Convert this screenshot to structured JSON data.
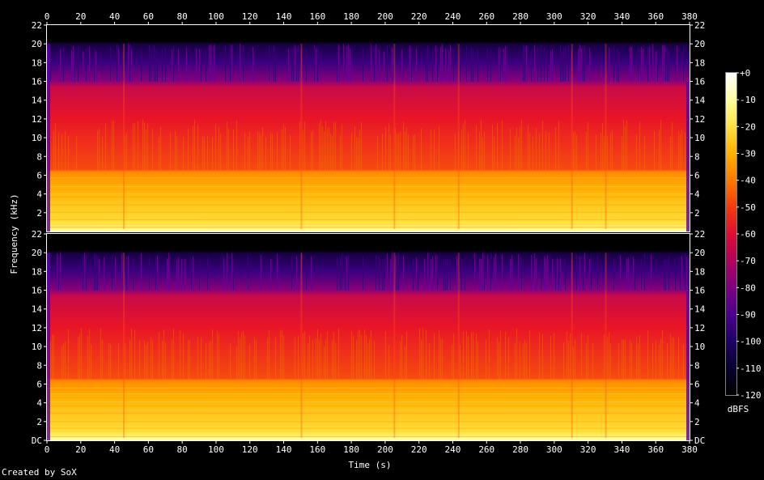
{
  "chart_data": {
    "type": "heatmap",
    "title": "",
    "xlabel": "Time (s)",
    "ylabel": "Frequency (kHz)",
    "xlim": [
      0,
      380
    ],
    "channels": [
      {
        "name": "",
        "ylim": [
          0,
          22
        ],
        "yticks": [
          "DC",
          "2",
          "4",
          "6",
          "8",
          "10",
          "12",
          "14",
          "16",
          "18",
          "20",
          "22"
        ]
      },
      {
        "name": "",
        "ylim": [
          0,
          22
        ],
        "yticks": [
          "DC",
          "2",
          "4",
          "6",
          "8",
          "10",
          "12",
          "14",
          "16",
          "18",
          "20",
          "22"
        ]
      }
    ],
    "xticks": [
      "0",
      "20",
      "40",
      "60",
      "80",
      "100",
      "120",
      "140",
      "160",
      "180",
      "200",
      "220",
      "240",
      "260",
      "280",
      "300",
      "320",
      "340",
      "360",
      "380"
    ],
    "colorbar": {
      "label": "dBFS",
      "range": [
        -120,
        0
      ],
      "ticks": [
        "+0",
        "-10",
        "-20",
        "-30",
        "-40",
        "-50",
        "-60",
        "-70",
        "-80",
        "-90",
        "-100",
        "-110",
        "-120"
      ],
      "colors": [
        "#ffffff",
        "#ffff9e",
        "#ffe040",
        "#ffb000",
        "#ff7a00",
        "#f53a0d",
        "#e00d35",
        "#b0005c",
        "#7d0080",
        "#4a0090",
        "#1e0066",
        "#08002d",
        "#000000"
      ]
    },
    "energy_profile_khz": {
      "bright_band_top": 6.2,
      "red_band_top": 16,
      "cutoff": 20
    },
    "segments_s": [
      0,
      45,
      150,
      205,
      243,
      310,
      330,
      378
    ]
  },
  "footer": "Created by SoX"
}
